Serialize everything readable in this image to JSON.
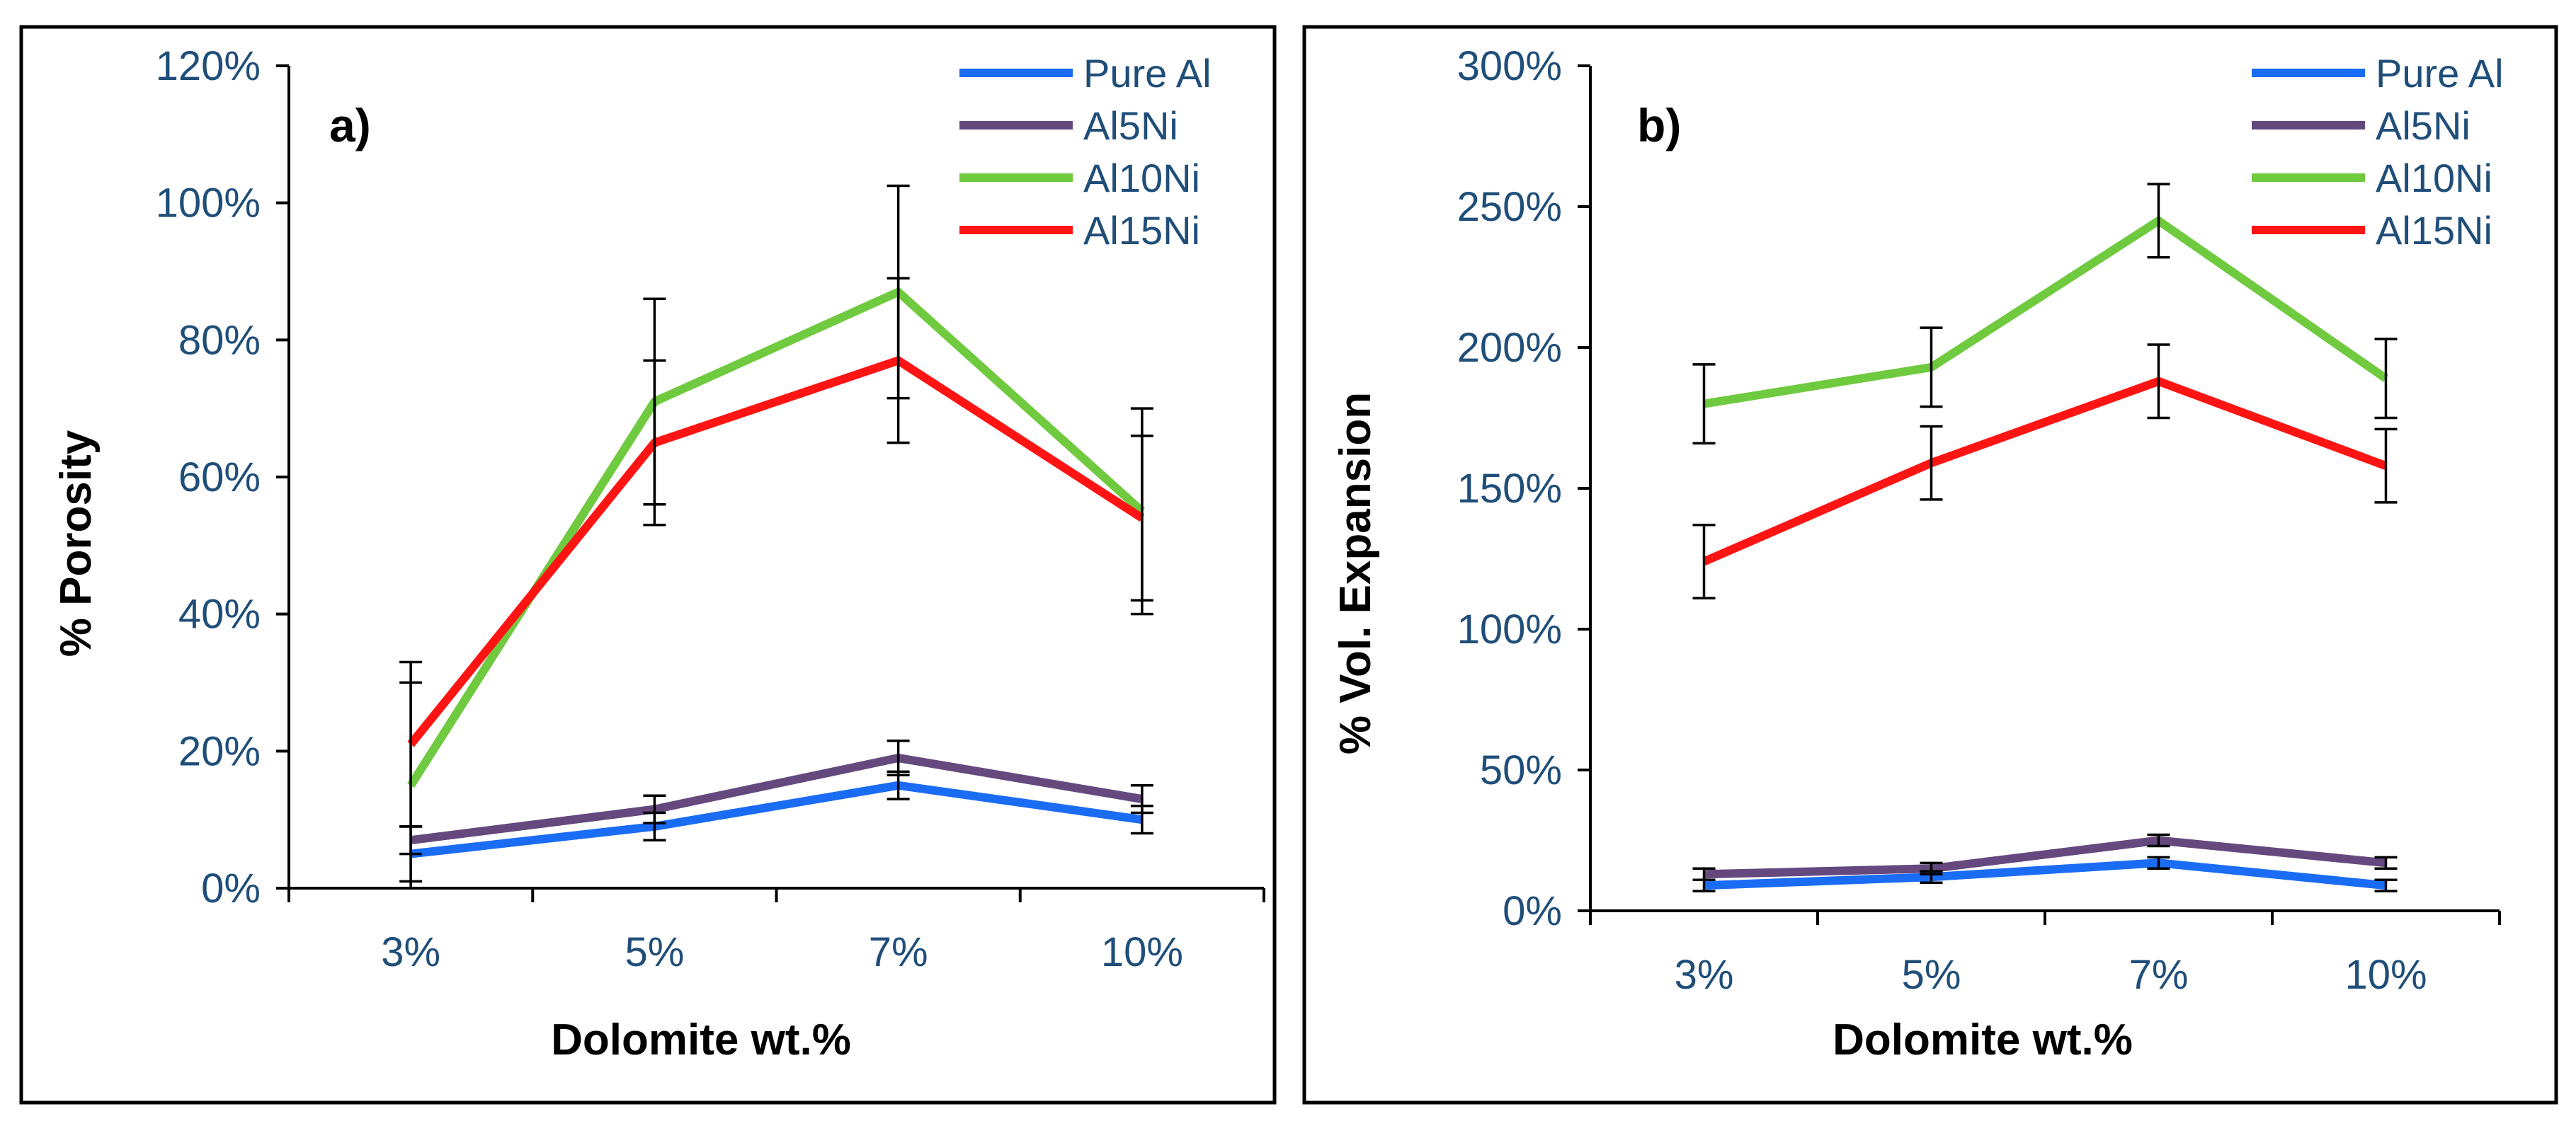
{
  "colors": {
    "Pure Al": "#1a6cf5",
    "Al5Ni": "#65497e",
    "Al10Ni": "#6fca3f",
    "Al15Ni": "#ff1414",
    "tick_text": "#1f4e79",
    "frame": "#000000"
  },
  "chart_data": [
    {
      "type": "line",
      "panel_label": "a)",
      "title": "",
      "xlabel": "Dolomite wt.%",
      "ylabel": "% Porosity",
      "categories": [
        "3%",
        "5%",
        "7%",
        "10%"
      ],
      "ylim": [
        0,
        120
      ],
      "yticks": [
        0,
        20,
        40,
        60,
        80,
        100,
        120
      ],
      "ytick_labels": [
        "0%",
        "20%",
        "40%",
        "60%",
        "80%",
        "100%",
        "120%"
      ],
      "grid": false,
      "legend": "top-right",
      "series": [
        {
          "name": "Pure Al",
          "values": [
            5,
            9,
            15,
            10
          ],
          "error": [
            4,
            2,
            2,
            2
          ]
        },
        {
          "name": "Al5Ni",
          "values": [
            7,
            11.5,
            19,
            13
          ],
          "error": [
            2,
            2,
            2.5,
            2
          ]
        },
        {
          "name": "Al10Ni",
          "values": [
            15,
            71,
            87,
            55
          ],
          "error": [
            15,
            15,
            15.5,
            15
          ]
        },
        {
          "name": "Al15Ni",
          "values": [
            21,
            65,
            77,
            54
          ],
          "error": [
            12,
            12,
            12,
            12
          ]
        }
      ]
    },
    {
      "type": "line",
      "panel_label": "b)",
      "title": "",
      "xlabel": "Dolomite wt.%",
      "ylabel": "% Vol. Expansion",
      "categories": [
        "3%",
        "5%",
        "7%",
        "10%"
      ],
      "ylim": [
        0,
        300
      ],
      "yticks": [
        0,
        50,
        100,
        150,
        200,
        250,
        300
      ],
      "ytick_labels": [
        "0%",
        "50%",
        "100%",
        "150%",
        "200%",
        "250%",
        "300%"
      ],
      "grid": false,
      "legend": "top-right",
      "series": [
        {
          "name": "Pure Al",
          "values": [
            9,
            12,
            17,
            9
          ],
          "error": [
            2,
            2,
            2,
            2
          ]
        },
        {
          "name": "Al5Ni",
          "values": [
            13,
            15,
            25,
            17
          ],
          "error": [
            2,
            2,
            2,
            2
          ]
        },
        {
          "name": "Al10Ni",
          "values": [
            180,
            193,
            245,
            189
          ],
          "error": [
            14,
            14,
            13,
            14
          ]
        },
        {
          "name": "Al15Ni",
          "values": [
            124,
            159,
            188,
            158
          ],
          "error": [
            13,
            13,
            13,
            13
          ]
        }
      ]
    }
  ]
}
